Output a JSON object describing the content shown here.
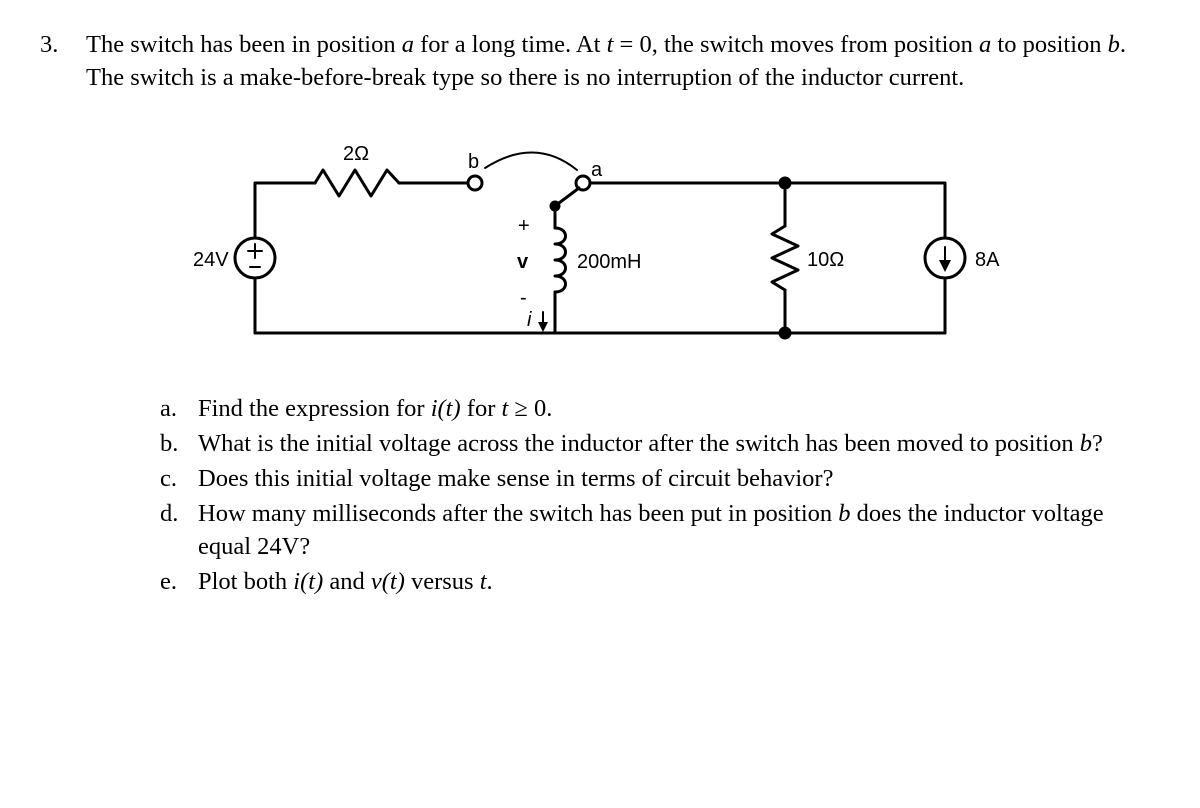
{
  "colors": {
    "text": "#000000",
    "background": "#ffffff",
    "circuit_stroke": "#000000",
    "circuit_fill": "#ffffff"
  },
  "typography": {
    "body_fontsize_pt": 19,
    "font_family": "Times New Roman"
  },
  "question": {
    "number": "3.",
    "stem_html": "The switch has been in position <span class=\"it\">a</span> for a long time. At <span class=\"it\">t</span> = 0, the switch moves from position <span class=\"it\">a</span> to position <span class=\"it\">b</span>. The switch is a make-before-break type so there is no interruption of the inductor current."
  },
  "circuit": {
    "type": "circuit-diagram",
    "stroke_width_main": 3,
    "labels": {
      "vsrc": "24V",
      "r_top": "2Ω",
      "switch_b": "b",
      "switch_a": "a",
      "v_plus": "+",
      "v_letter": "v",
      "v_minus": "-",
      "i_letter": "i",
      "inductor": "200mH",
      "r_right": "10Ω",
      "isrc": "8A"
    },
    "label_fontsize": 20,
    "label_font_family": "Arial, Helvetica, sans-serif"
  },
  "subparts": [
    {
      "letter": "a.",
      "text_html": "Find the expression for <span class=\"it\">i(t)</span> for <span class=\"it\">t</span> ≥ 0."
    },
    {
      "letter": "b.",
      "text_html": "What is the initial voltage across the inductor after the switch has been moved to position <span class=\"it\">b</span>?"
    },
    {
      "letter": "c.",
      "text_html": "Does this initial voltage make sense in terms of circuit behavior?"
    },
    {
      "letter": "d.",
      "text_html": "How many milliseconds after the switch has been put in position <span class=\"it\">b</span> does the inductor voltage equal 24V?"
    },
    {
      "letter": "e.",
      "text_html": "Plot both <span class=\"it\">i(t)</span> and <span class=\"it\">v(t)</span> versus <span class=\"it\">t</span>."
    }
  ]
}
